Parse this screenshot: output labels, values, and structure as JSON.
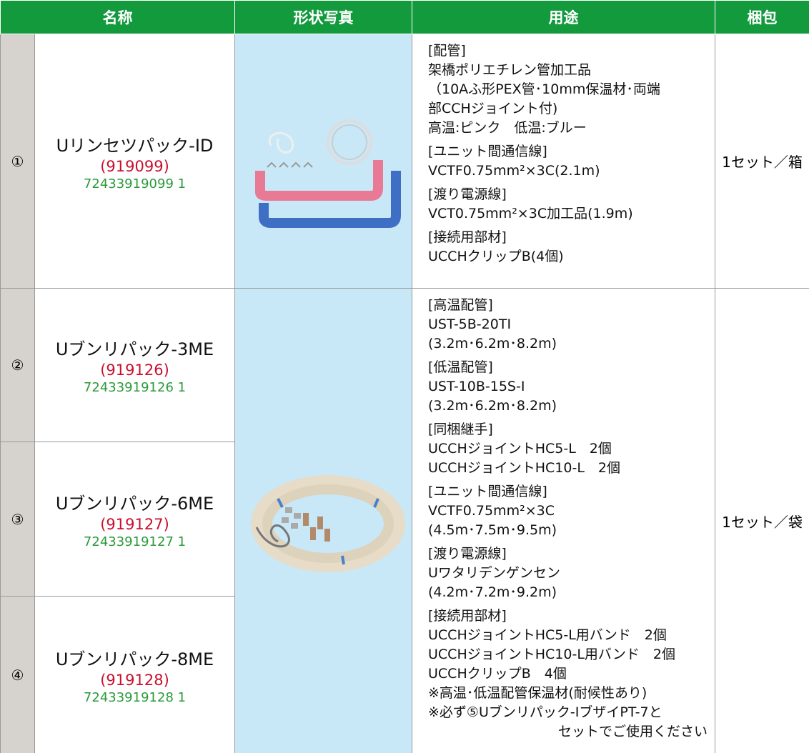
{
  "header": {
    "columns": [
      "名称",
      "形状写真",
      "用途",
      "梱包"
    ]
  },
  "groups": [
    {
      "items": [
        {
          "number": "①",
          "name": "Uリンセツパック-ID",
          "code": "(919099)",
          "jan": "72433919099 1"
        }
      ],
      "usage": [
        {
          "heading": "[配管]",
          "lines": [
            "架橋ポリエチレン管加工品",
            "（10Aふ形PEX管･10mm保温材･両端",
            "部CCHジョイント付)",
            "高温:ピンク　低温:ブルー"
          ]
        },
        {
          "heading": "[ユニット間通信線]",
          "lines": [
            "VCTF0.75mm²×3C(2.1m)"
          ]
        },
        {
          "heading": "[渡り電源線]",
          "lines": [
            "VCT0.75mm²×3C加工品(1.9m)"
          ]
        },
        {
          "heading": "[接続用部材]",
          "lines": [
            "UCCHクリップB(4個)"
          ]
        }
      ],
      "packing": "1セット／箱"
    },
    {
      "items": [
        {
          "number": "②",
          "name": "Uブンリパック-3ME",
          "code": "(919126)",
          "jan": "72433919126 1"
        },
        {
          "number": "③",
          "name": "Uブンリパック-6ME",
          "code": "(919127)",
          "jan": "72433919127 1"
        },
        {
          "number": "④",
          "name": "Uブンリパック-8ME",
          "code": "(919128)",
          "jan": "72433919128 1"
        }
      ],
      "usage": [
        {
          "heading": "[高温配管]",
          "lines": [
            "UST-5B-20TI",
            "(3.2m･6.2m･8.2m)"
          ]
        },
        {
          "heading": "[低温配管]",
          "lines": [
            "UST-10B-15S-I",
            "(3.2m･6.2m･8.2m)"
          ]
        },
        {
          "heading": "[同梱継手]",
          "lines": [
            "UCCHジョイントHC5-L　2個",
            "UCCHジョイントHC10-L　2個"
          ]
        },
        {
          "heading": "[ユニット間通信線]",
          "lines": [
            "VCTF0.75mm²×3C",
            "(4.5m･7.5m･9.5m)"
          ]
        },
        {
          "heading": "[渡り電源線]",
          "lines": [
            "Uワタリデンゲンセン",
            "(4.2m･7.2m･9.2m)"
          ]
        },
        {
          "heading": "[接続用部材]",
          "lines": [
            "UCCHジョイントHC5-L用バンド　2個",
            "UCCHジョイントHC10-L用バンド　2個",
            "UCCHクリップB　4個",
            "※高温･低温配管保温材(耐候性あり)",
            "※必ず⑤Uブンリパック-IブザイPT-7と",
            "セットでご使用ください"
          ]
        }
      ],
      "packing": "1セット／袋"
    }
  ]
}
